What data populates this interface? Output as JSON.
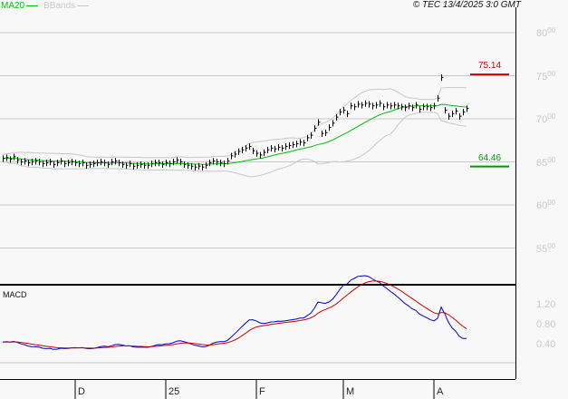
{
  "legend": {
    "ma_label": "MA20",
    "bb_label": "BBands",
    "ma_color": "#00c000",
    "bb_color": "#c8c8c8"
  },
  "copyright": "© TEC 13/4/2025 3:0 GMT",
  "chart_data": {
    "type": "bar",
    "ylim": [
      52.5,
      83.5
    ],
    "y_ticks": [
      {
        "int": "80",
        "dec": "00",
        "v": 80
      },
      {
        "int": "75",
        "dec": "00",
        "v": 75
      },
      {
        "int": "70",
        "dec": "00",
        "v": 70
      },
      {
        "int": "65",
        "dec": "00",
        "v": 65
      },
      {
        "int": "60",
        "dec": "00",
        "v": 60
      },
      {
        "int": "55",
        "dec": "00",
        "v": 55
      }
    ],
    "x_ticks": [
      {
        "label": "D",
        "i": 20
      },
      {
        "label": "25",
        "i": 45
      },
      {
        "label": "F",
        "i": 70
      },
      {
        "label": "M",
        "i": 94
      },
      {
        "label": "A",
        "i": 119
      }
    ],
    "resistance": {
      "label": "75.14",
      "value": 75.14,
      "color": "#cc0000"
    },
    "support": {
      "label": "64.46",
      "value": 64.46,
      "color": "#009900"
    },
    "closes": [
      65.4,
      65.5,
      65.3,
      65.6,
      65.2,
      65.0,
      65.1,
      64.9,
      65.0,
      65.1,
      65.0,
      64.8,
      64.9,
      65.0,
      64.7,
      64.9,
      65.1,
      64.8,
      64.9,
      65.0,
      64.9,
      64.8,
      64.9,
      64.6,
      64.7,
      64.8,
      64.9,
      65.0,
      64.9,
      64.7,
      65.0,
      65.1,
      64.9,
      64.7,
      64.6,
      64.8,
      64.5,
      64.6,
      64.7,
      64.6,
      64.6,
      64.8,
      64.9,
      64.9,
      64.7,
      64.9,
      64.8,
      65.0,
      65.2,
      65.0,
      64.7,
      64.6,
      64.5,
      64.4,
      64.5,
      64.4,
      64.6,
      64.9,
      65.1,
      65.0,
      64.9,
      64.8,
      65.1,
      65.7,
      65.9,
      66.2,
      66.4,
      66.6,
      66.8,
      66.3,
      66.0,
      65.8,
      66.1,
      66.4,
      66.6,
      66.5,
      66.7,
      66.6,
      66.8,
      66.9,
      67.0,
      67.1,
      67.3,
      67.2,
      67.8,
      68.1,
      68.9,
      69.6,
      68.3,
      68.4,
      69.0,
      69.5,
      70.2,
      70.8,
      71.0,
      70.6,
      71.5,
      71.4,
      71.7,
      71.6,
      71.8,
      71.7,
      71.5,
      71.6,
      71.8,
      71.4,
      71.6,
      71.5,
      71.6,
      71.5,
      71.4,
      71.3,
      71.5,
      71.3,
      71.6,
      71.1,
      71.4,
      71.4,
      71.3,
      71.5,
      72.4,
      74.8,
      71.0,
      70.3,
      70.6,
      70.9,
      70.3,
      70.8,
      71.2
    ],
    "macd": {
      "label": "MACD",
      "ticks": [
        {
          "label": "1.20",
          "v": 1.2
        },
        {
          "label": "0.80",
          "v": 0.8
        },
        {
          "label": "0.40",
          "v": 0.4
        }
      ],
      "macd_color": "#0000cc",
      "signal_color": "#cc0000"
    }
  }
}
